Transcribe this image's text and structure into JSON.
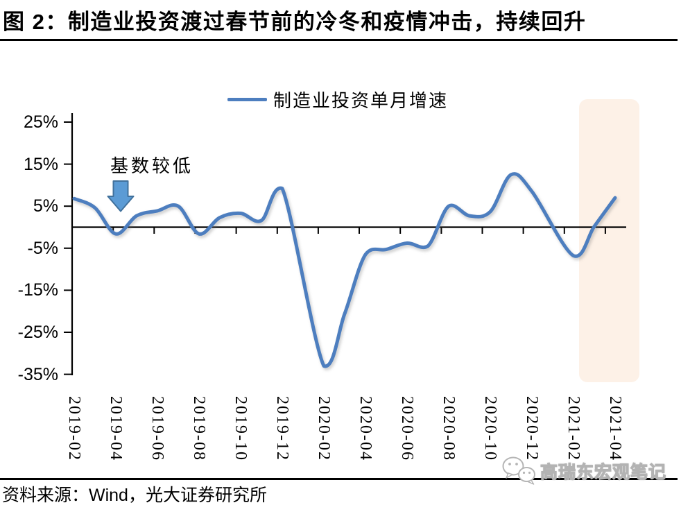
{
  "header": {
    "title": "图 2：制造业投资渡过春节前的冷冬和疫情冲击，持续回升"
  },
  "chart_data": {
    "type": "line",
    "title": "图 2：制造业投资渡过春节前的冷冬和疫情冲击，持续回升",
    "xlabel": "",
    "ylabel": "",
    "ylim": [
      -35,
      25
    ],
    "grid": false,
    "legend_position": "top-center",
    "yticks": [
      25,
      15,
      5,
      -5,
      -15,
      -25,
      -35
    ],
    "ytick_labels": [
      "25%",
      "15%",
      "5%",
      "-5%",
      "-15%",
      "-25%",
      "-35%"
    ],
    "x_tick_labels": [
      "2019-02",
      "2019-04",
      "2019-06",
      "2019-08",
      "2019-10",
      "2019-12",
      "2020-02",
      "2020-04",
      "2020-06",
      "2020-08",
      "2020-10",
      "2020-12",
      "2021-02",
      "2021-04"
    ],
    "series": [
      {
        "name": "制造业投资单月增速",
        "color": "#4d7ebf",
        "unit": "%",
        "points": [
          [
            "2019-02",
            6.8
          ],
          [
            "2019-03",
            4.6
          ],
          [
            "2019-04",
            -1.6
          ],
          [
            "2019-05",
            2.7
          ],
          [
            "2019-06",
            3.9
          ],
          [
            "2019-07",
            5.0
          ],
          [
            "2019-08",
            -1.6
          ],
          [
            "2019-09",
            2.3
          ],
          [
            "2019-10",
            3.3
          ],
          [
            "2019-11",
            1.6
          ],
          [
            "2019-12",
            9.2
          ],
          [
            "2020-02",
            -33.0
          ],
          [
            "2020-03",
            -20.6
          ],
          [
            "2020-04",
            -6.5
          ],
          [
            "2020-05",
            -5.3
          ],
          [
            "2020-06",
            -3.8
          ],
          [
            "2020-07",
            -4.5
          ],
          [
            "2020-08",
            5.0
          ],
          [
            "2020-09",
            2.7
          ],
          [
            "2020-10",
            3.7
          ],
          [
            "2020-11",
            12.5
          ],
          [
            "2020-12",
            8.5
          ],
          [
            "2021-02",
            -6.8
          ],
          [
            "2021-03",
            0.2
          ],
          [
            "2021-04",
            7.0
          ]
        ]
      }
    ],
    "annotation": {
      "text": "基数较低",
      "marker": "down-arrow",
      "points_at": "2019-04"
    },
    "highlight_region": {
      "x_start": "2021-02",
      "x_end": "2021-04",
      "color": "#fdf1e7"
    }
  },
  "footer": {
    "source": "资料来源：Wind，光大证券研究所",
    "watermark_text": "高瑞东宏观笔记",
    "watermark_icon": "wechat-icon"
  },
  "colors": {
    "line": "#4d7ebf",
    "arrow_fill": "#5b9bd5",
    "arrow_border": "#41719c",
    "highlight": "#fdf1e7",
    "axis": "#000000"
  }
}
